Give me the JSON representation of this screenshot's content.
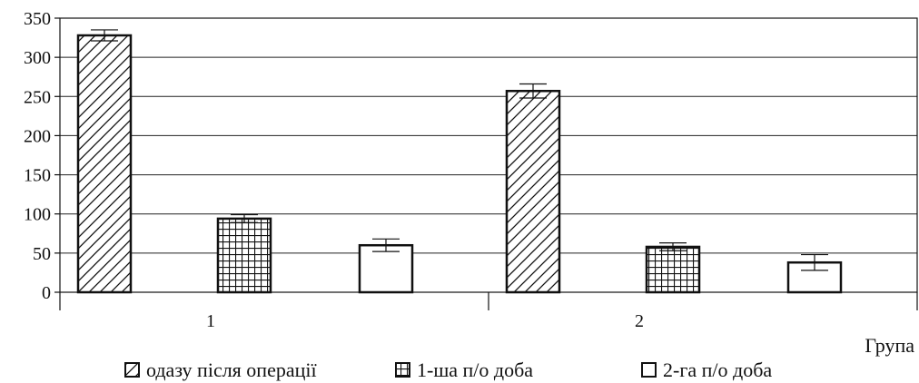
{
  "chart_data": {
    "type": "bar",
    "title": "",
    "xlabel": "Група",
    "ylabel": "",
    "ylim": [
      0,
      350
    ],
    "yticks": [
      0,
      50,
      100,
      150,
      200,
      250,
      300,
      350
    ],
    "grid": true,
    "categories": [
      "1",
      "2"
    ],
    "series": [
      {
        "name": "одазу після операції",
        "pattern": "diagonal-hatch",
        "values": [
          328,
          257
        ],
        "errors": [
          7,
          9
        ]
      },
      {
        "name": "1-ша п/о доба",
        "pattern": "crosshatch",
        "values": [
          94,
          58
        ],
        "errors": [
          5,
          5
        ]
      },
      {
        "name": "2-га п/о доба",
        "pattern": "plain",
        "values": [
          60,
          38
        ],
        "errors": [
          8,
          10
        ]
      }
    ],
    "legend_position": "bottom"
  },
  "colors": {
    "bar_stroke": "#111111",
    "bar_fill": "#ffffff",
    "grid": "#222222"
  }
}
